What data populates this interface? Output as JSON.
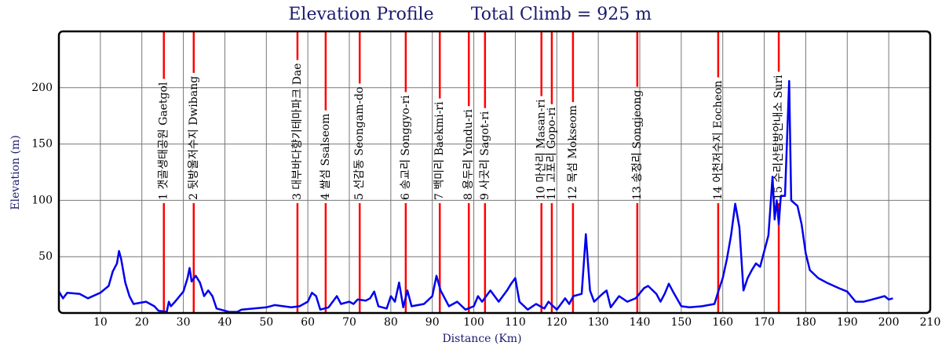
{
  "chart_data": {
    "type": "line",
    "title": "Elevation Profile",
    "subtitle": "Total Climb = 925 m",
    "x_label": "Distance (Km)",
    "y_label": "Elevation (m)",
    "xlim": [
      0,
      210
    ],
    "ylim": [
      0,
      250
    ],
    "xticks": [
      10,
      20,
      30,
      40,
      50,
      60,
      70,
      80,
      90,
      100,
      110,
      120,
      130,
      140,
      150,
      160,
      170,
      180,
      190,
      200,
      210
    ],
    "yticks": [
      50,
      100,
      150,
      200
    ],
    "grid": true,
    "color": "#0000ee",
    "marker_color": "#ff0000",
    "x": [
      0,
      1,
      2,
      5,
      7,
      10,
      12,
      13,
      14,
      14.5,
      15,
      16,
      17,
      18,
      21,
      23,
      24,
      26,
      26.5,
      27,
      28,
      30,
      31,
      31.5,
      32,
      33,
      34,
      35,
      36,
      37,
      38,
      41,
      43,
      44,
      50,
      52,
      56,
      58,
      60,
      61,
      62,
      63,
      65,
      67,
      68,
      70,
      71,
      72,
      74,
      75,
      76,
      77,
      79,
      80,
      81,
      82,
      83,
      84,
      85,
      88,
      90,
      91,
      92,
      94,
      96,
      98,
      100,
      101,
      102,
      104,
      106,
      108,
      109,
      110,
      111,
      113,
      115,
      117,
      118,
      120,
      122,
      123,
      124,
      126,
      127,
      128,
      129,
      131,
      132,
      133,
      135,
      137,
      139,
      141,
      142,
      144,
      145,
      146,
      147,
      148,
      150,
      152,
      155,
      158,
      159,
      160,
      161,
      162,
      163,
      164,
      165,
      166,
      167,
      168,
      169,
      170,
      171,
      172,
      172.5,
      173,
      173.5,
      174,
      175,
      176,
      176.5,
      178,
      179,
      180,
      181,
      183,
      185,
      188,
      190,
      192,
      194,
      196,
      199,
      200,
      201
    ],
    "values": [
      19,
      13,
      18,
      17,
      13,
      18,
      24,
      37,
      44,
      55,
      48,
      27,
      15,
      8,
      10,
      6,
      2,
      1,
      10,
      6,
      10,
      19,
      31,
      40,
      28,
      33,
      27,
      15,
      20,
      15,
      4,
      1,
      1,
      3,
      5,
      7,
      5,
      6,
      10,
      18,
      15,
      3,
      5,
      15,
      8,
      10,
      8,
      12,
      11,
      13,
      19,
      6,
      4,
      15,
      10,
      27,
      5,
      20,
      6,
      8,
      15,
      33,
      20,
      6,
      10,
      3,
      6,
      15,
      10,
      20,
      10,
      20,
      26,
      31,
      10,
      3,
      8,
      4,
      10,
      3,
      13,
      8,
      15,
      17,
      70,
      20,
      10,
      17,
      20,
      5,
      15,
      10,
      13,
      22,
      24,
      17,
      10,
      17,
      26,
      19,
      6,
      5,
      6,
      8,
      20,
      31,
      48,
      69,
      97,
      76,
      20,
      31,
      38,
      44,
      41,
      55,
      69,
      121,
      83,
      100,
      79,
      104,
      104,
      206,
      100,
      95,
      79,
      53,
      38,
      31,
      27,
      22,
      19,
      10,
      10,
      12,
      15,
      12,
      13
    ],
    "markers": [
      {
        "x": 25.3,
        "label": "1 갯골생태공원 Gaetgol"
      },
      {
        "x": 32.5,
        "label": "2 뒷방울저수지 Dwibang"
      },
      {
        "x": 57.5,
        "label": "3 대부바다향기테마파크 Dae"
      },
      {
        "x": 64.3,
        "label": "4 쌀섬 Ssalseom"
      },
      {
        "x": 72.5,
        "label": "5 선감동 Seongam-do"
      },
      {
        "x": 83.6,
        "label": "6 송교리 Songgyo-ri"
      },
      {
        "x": 91.8,
        "label": "7 백미리 Baekmi-ri"
      },
      {
        "x": 98.8,
        "label": "8 용두리 Yondu-ri"
      },
      {
        "x": 102.7,
        "label": "9 사곳리 Sagot-ri"
      },
      {
        "x": 116.3,
        "label": "10 마산리 Masan-ri"
      },
      {
        "x": 118.8,
        "label": "11 고포리 Gopo-ri"
      },
      {
        "x": 123.9,
        "label": "12 목섬 Mokseom"
      },
      {
        "x": 139.4,
        "label": "13 송정리 Songjeong"
      },
      {
        "x": 158.9,
        "label": "14 어천저수지 Eocheon"
      },
      {
        "x": 173.5,
        "label": "15 수리산탐방안내소 Suri"
      }
    ]
  }
}
